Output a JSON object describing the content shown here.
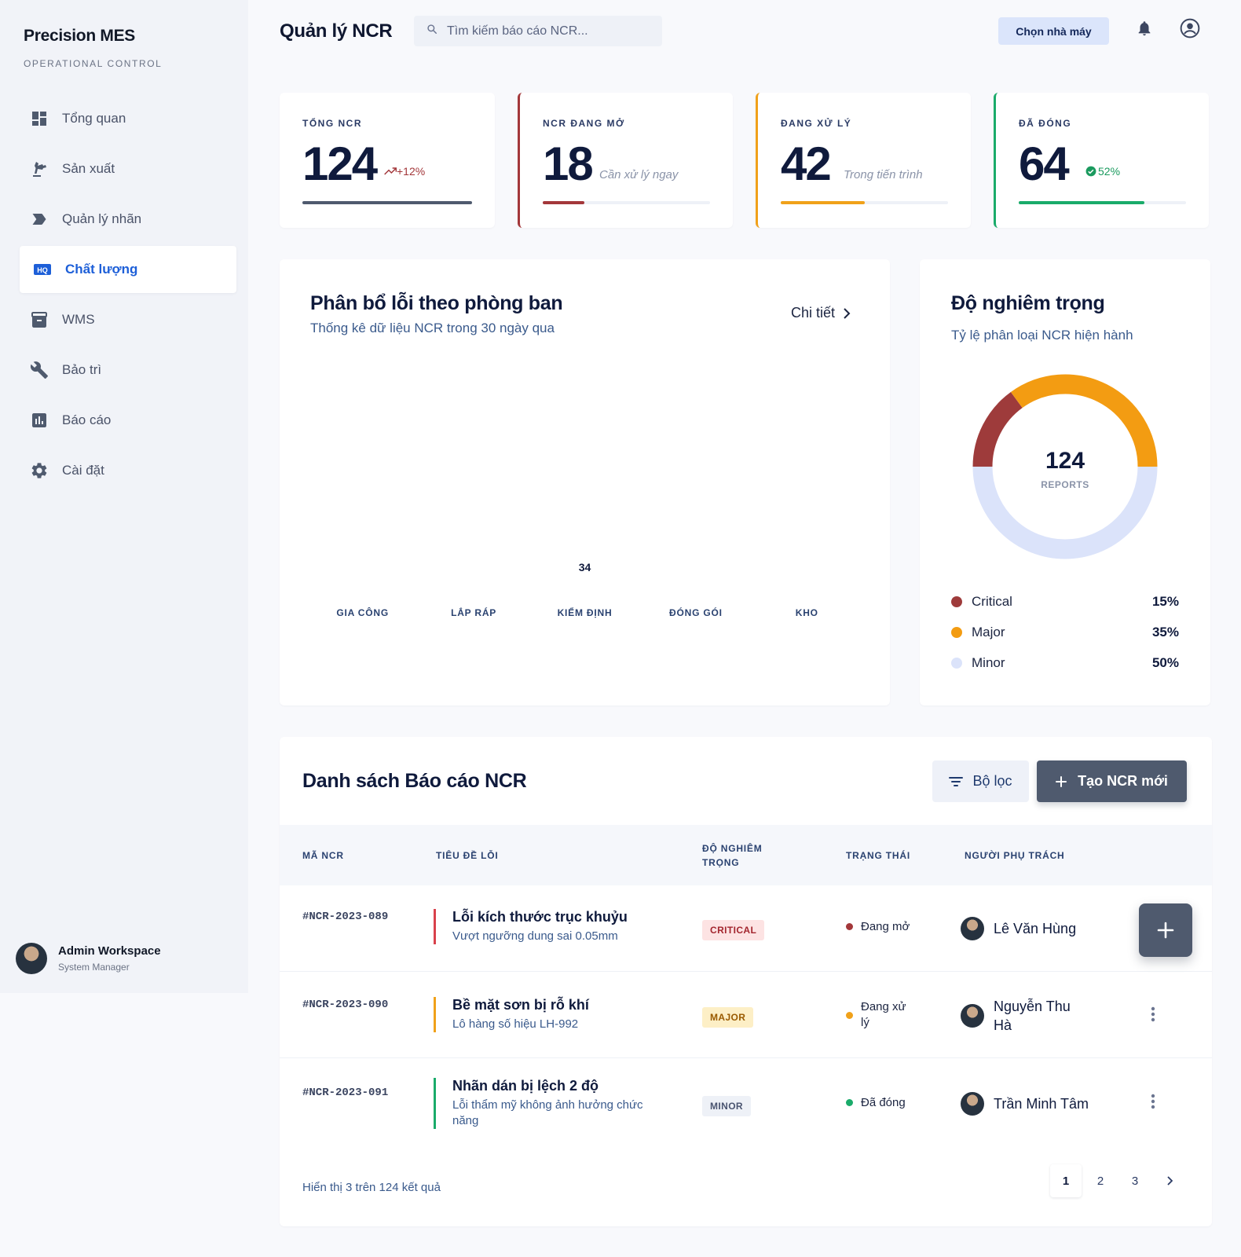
{
  "sidebar": {
    "brand": "Precision MES",
    "brand_sub": "OPERATIONAL CONTROL",
    "items": [
      {
        "label": "Tổng quan",
        "icon": "dashboard-icon"
      },
      {
        "label": "Sản xuất",
        "icon": "precision-manufacturing-icon"
      },
      {
        "label": "Quản lý nhãn",
        "icon": "label-icon"
      },
      {
        "label": "Chất lượng",
        "icon": "hq-icon",
        "active": true,
        "icon_text": "HQ"
      },
      {
        "label": "WMS",
        "icon": "inventory-icon"
      },
      {
        "label": "Bảo trì",
        "icon": "wrench-icon"
      },
      {
        "label": "Báo cáo",
        "icon": "bar-chart-icon"
      },
      {
        "label": "Cài đặt",
        "icon": "gear-icon"
      }
    ],
    "user": {
      "name": "Admin Workspace",
      "role": "System Manager"
    }
  },
  "header": {
    "title": "Quản lý NCR",
    "search_placeholder": "Tìm kiếm báo cáo NCR...",
    "factory_button": "Chọn nhà máy"
  },
  "stats": [
    {
      "label": "TỔNG NCR",
      "value": "124",
      "note": "+12%",
      "fill": 1.0,
      "color": "#4f5a6e",
      "note_color": "#a3373a"
    },
    {
      "label": "NCR ĐANG MỞ",
      "value": "18",
      "note": "Cần xử lý ngay",
      "fill": 0.25,
      "color": "#a3373a"
    },
    {
      "label": "ĐANG XỬ LÝ",
      "value": "42",
      "note": "Trong tiến trình",
      "fill": 0.5,
      "color": "#f0a11a"
    },
    {
      "label": "ĐÃ ĐÓNG",
      "value": "64",
      "note": "52%",
      "fill": 0.75,
      "color": "#1aab6a",
      "note_color": "#1a9a5e"
    }
  ],
  "dept_chart": {
    "title": "Phân bổ lỗi theo phòng ban",
    "subtitle": "Thống kê dữ liệu NCR trong 30 ngày qua",
    "detail_link": "Chi tiết"
  },
  "chart_data": {
    "type": "bar",
    "categories": [
      "GIA CÔNG",
      "LẮP RÁP",
      "KIỂM ĐỊNH",
      "ĐÓNG GÓI",
      "KHO"
    ],
    "values": [
      null,
      null,
      34,
      null,
      null
    ],
    "data_labels": [
      "",
      "",
      "34",
      "",
      ""
    ]
  },
  "severity": {
    "title": "Độ nghiêm trọng",
    "subtitle": "Tỷ lệ phân loại NCR hiện hành",
    "total": "124",
    "total_label": "REPORTS",
    "legend": [
      {
        "name": "Critical",
        "pct": "15%",
        "value": 15,
        "color": "#9e3b3b"
      },
      {
        "name": "Major",
        "pct": "35%",
        "value": 35,
        "color": "#f39c12"
      },
      {
        "name": "Minor",
        "pct": "50%",
        "value": 50,
        "color": "#dbe3fa"
      }
    ]
  },
  "table": {
    "title": "Danh sách Báo cáo NCR",
    "filter_button": "Bộ lọc",
    "new_button": "Tạo NCR mới",
    "headers": [
      "MÃ NCR",
      "TIÊU ĐỀ LỖI",
      "ĐỘ NGHIÊM TRỌNG",
      "TRẠNG THÁI",
      "NGƯỜI PHỤ TRÁCH"
    ],
    "rows": [
      {
        "code": "#NCR-2023-089",
        "title": "Lỗi kích thước trục khuỷu",
        "desc": "Vượt ngưỡng dung sai 0.05mm",
        "severity": "CRITICAL",
        "status": "Đang mở",
        "owner": "Lê Văn Hùng",
        "accent": "#d9414b",
        "badge_bg": "#fde3e3",
        "badge_fg": "#a3262e",
        "status_color": "#a3373a"
      },
      {
        "code": "#NCR-2023-090",
        "title": "Bề mặt sơn bị rỗ khí",
        "desc": "Lô hàng số hiệu LH-992",
        "severity": "MAJOR",
        "status": "Đang xử lý",
        "owner": "Nguyễn Thu Hà",
        "accent": "#f0a11a",
        "badge_bg": "#fdefc6",
        "badge_fg": "#9a5a00",
        "status_color": "#f0a11a"
      },
      {
        "code": "#NCR-2023-091",
        "title": "Nhãn dán bị lệch 2 độ",
        "desc": "Lỗi thẩm mỹ không ảnh hưởng chức năng",
        "severity": "MINOR",
        "status": "Đã đóng",
        "owner": "Trần Minh Tâm",
        "accent": "#1aab6a",
        "badge_bg": "#eef1f7",
        "badge_fg": "#4a5470",
        "status_color": "#1aab6a"
      }
    ],
    "footer": "Hiển thị 3 trên 124 kết quả",
    "pages": [
      "1",
      "2",
      "3"
    ]
  }
}
